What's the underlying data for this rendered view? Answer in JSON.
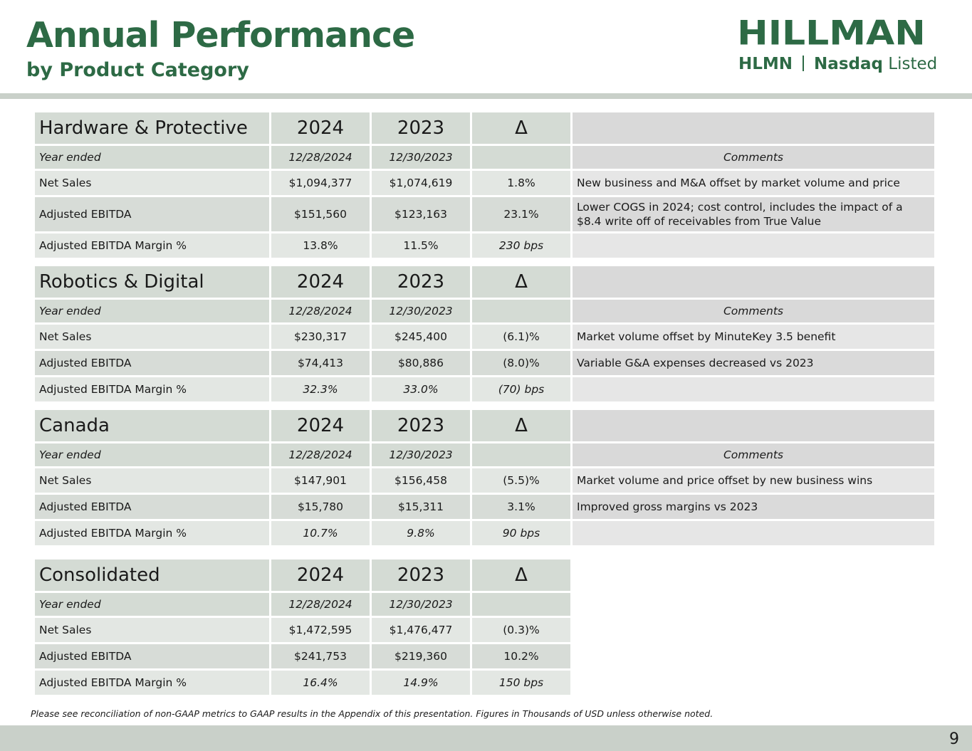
{
  "header": {
    "title": "Annual Performance",
    "subtitle": "by Product Category"
  },
  "logo": {
    "word": "HILLMAN",
    "ticker": "HLMN",
    "exchange": "Nasdaq",
    "listed": "Listed"
  },
  "tables": [
    {
      "name": "Hardware & Protective",
      "col1": "2024",
      "col2": "2023",
      "col3": "Δ",
      "year_label": "Year ended",
      "date1": "12/28/2024",
      "date2": "12/30/2023",
      "comments_label": "Comments",
      "rows": [
        {
          "label": "Net Sales",
          "v1": "$1,094,377",
          "v2": "$1,074,619",
          "d": "1.8%",
          "comment": "New business and M&A offset by market volume and price"
        },
        {
          "label": "Adjusted EBITDA",
          "v1": "$151,560",
          "v2": "$123,163",
          "d": "23.1%",
          "comment": "Lower COGS in 2024; cost control, includes the impact of a $8.4 write off of receivables from True Value"
        },
        {
          "label": "Adjusted EBITDA Margin %",
          "v1": "13.8%",
          "v2": "11.5%",
          "d": "230 bps",
          "comment": ""
        }
      ]
    },
    {
      "name": "Robotics & Digital",
      "col1": "2024",
      "col2": "2023",
      "col3": "Δ",
      "year_label": "Year ended",
      "date1": "12/28/2024",
      "date2": "12/30/2023",
      "comments_label": "Comments",
      "rows": [
        {
          "label": "Net Sales",
          "v1": "$230,317",
          "v2": "$245,400",
          "d": "(6.1)%",
          "comment": "Market volume offset by MinuteKey 3.5 benefit"
        },
        {
          "label": "Adjusted EBITDA",
          "v1": "$74,413",
          "v2": "$80,886",
          "d": "(8.0)%",
          "comment": "Variable G&A expenses decreased vs 2023"
        },
        {
          "label": "Adjusted EBITDA Margin %",
          "v1": "32.3%",
          "v2": "33.0%",
          "d": "(70) bps",
          "comment": ""
        }
      ]
    },
    {
      "name": "Canada",
      "col1": "2024",
      "col2": "2023",
      "col3": "Δ",
      "year_label": "Year ended",
      "date1": "12/28/2024",
      "date2": "12/30/2023",
      "comments_label": "Comments",
      "rows": [
        {
          "label": "Net Sales",
          "v1": "$147,901",
          "v2": "$156,458",
          "d": "(5.5)%",
          "comment": "Market volume and price offset by new business wins"
        },
        {
          "label": "Adjusted EBITDA",
          "v1": "$15,780",
          "v2": "$15,311",
          "d": "3.1%",
          "comment": "Improved gross margins vs 2023"
        },
        {
          "label": "Adjusted EBITDA Margin %",
          "v1": "10.7%",
          "v2": "9.8%",
          "d": "90 bps",
          "comment": ""
        }
      ]
    },
    {
      "name": "Consolidated",
      "col1": "2024",
      "col2": "2023",
      "col3": "Δ",
      "year_label": "Year ended",
      "date1": "12/28/2024",
      "date2": "12/30/2023",
      "rows": [
        {
          "label": "Net Sales",
          "v1": "$1,472,595",
          "v2": "$1,476,477",
          "d": "(0.3)%"
        },
        {
          "label": "Adjusted EBITDA",
          "v1": "$241,753",
          "v2": "$219,360",
          "d": "10.2%"
        },
        {
          "label": "Adjusted EBITDA Margin %",
          "v1": "16.4%",
          "v2": "14.9%",
          "d": "150 bps"
        }
      ]
    }
  ],
  "footnote": "Please see reconciliation of non-GAAP metrics to GAAP results in the Appendix of this presentation. Figures in Thousands of USD unless otherwise noted.",
  "page_number": "9",
  "colors": {
    "brand_green": "#2d6a45",
    "header_fill": "#d4dbd4",
    "band": "#c9d0c9"
  }
}
